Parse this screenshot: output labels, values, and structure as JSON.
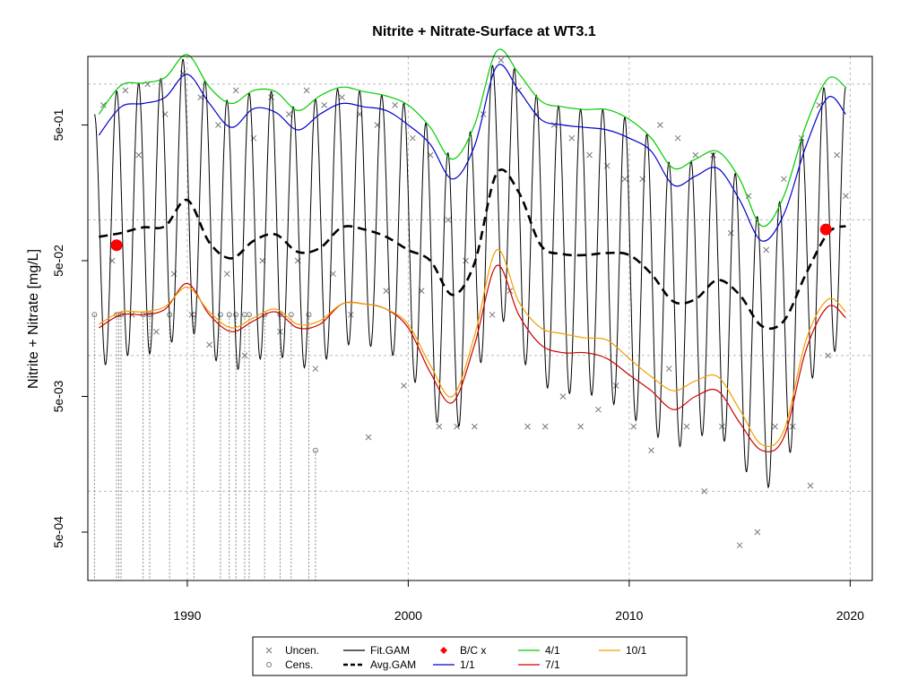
{
  "chart_data": {
    "type": "line",
    "title": "Nitrite + Nitrate-Surface at WT3.1",
    "xlabel": "",
    "ylabel": "Nitrite + Nitrate [mg/L]",
    "x_scale": "linear (year)",
    "y_scale": "log10",
    "xlim": [
      1985.5,
      2021.0
    ],
    "ylim": [
      0.00022,
      1.6
    ],
    "x_ticks": [
      1990,
      2000,
      2010,
      2020
    ],
    "x_tick_labels": [
      "1990",
      "2000",
      "2010",
      "2020"
    ],
    "y_ticks": [
      0.0005,
      0.005,
      0.05,
      0.5
    ],
    "y_tick_labels": [
      "5e-04",
      "5e-03",
      "5e-02",
      "5e-01"
    ],
    "y_gridlines": [
      0.001,
      0.01,
      0.1,
      1.0
    ],
    "grid": true,
    "legend_position": "bottom",
    "legend": [
      {
        "label": "Uncen.",
        "symbol": "x",
        "color": "#777777"
      },
      {
        "label": "Cens.",
        "symbol": "circle",
        "color": "#777777"
      },
      {
        "label": "Fit.GAM",
        "symbol": "line",
        "color": "#000000"
      },
      {
        "label": "Avg.GAM",
        "symbol": "dashed",
        "color": "#000000"
      },
      {
        "label": "B/C x",
        "symbol": "diamond",
        "color": "#ff0000"
      },
      {
        "label": "1/1",
        "symbol": "line",
        "color": "#0000cc"
      },
      {
        "label": "4/1",
        "symbol": "line",
        "color": "#00cc00"
      },
      {
        "label": "7/1",
        "symbol": "line",
        "color": "#cc0000"
      },
      {
        "label": "10/1",
        "symbol": "line",
        "color": "#f0a000"
      }
    ],
    "series": [
      {
        "name": "Avg.GAM",
        "color": "#000000",
        "style": "dashed",
        "x": [
          1986.0,
          1987.0,
          1988.0,
          1989.0,
          1990.0,
          1991.0,
          1992.0,
          1993.0,
          1994.0,
          1995.0,
          1996.0,
          1997.0,
          1998.0,
          1999.0,
          2000.0,
          2001.0,
          2002.0,
          2003.0,
          2004.0,
          2005.0,
          2006.0,
          2007.0,
          2008.0,
          2009.0,
          2010.0,
          2011.0,
          2012.0,
          2013.0,
          2014.0,
          2015.0,
          2016.0,
          2017.0,
          2018.0,
          2019.0,
          2019.8
        ],
        "y": [
          0.075,
          0.08,
          0.088,
          0.09,
          0.14,
          0.068,
          0.052,
          0.07,
          0.078,
          0.058,
          0.062,
          0.088,
          0.085,
          0.075,
          0.06,
          0.05,
          0.028,
          0.048,
          0.22,
          0.16,
          0.065,
          0.056,
          0.055,
          0.057,
          0.055,
          0.04,
          0.025,
          0.026,
          0.036,
          0.028,
          0.0165,
          0.018,
          0.04,
          0.08,
          0.09
        ]
      },
      {
        "name": "1/1",
        "color": "#0000cc",
        "x": [
          1986.0,
          1987.0,
          1988.0,
          1989.0,
          1990.0,
          1991.0,
          1992.0,
          1993.0,
          1994.0,
          1995.0,
          1996.0,
          1997.0,
          1998.0,
          1999.0,
          2000.0,
          2001.0,
          2002.0,
          2003.0,
          2004.0,
          2005.0,
          2006.0,
          2007.0,
          2008.0,
          2009.0,
          2010.0,
          2011.0,
          2012.0,
          2013.0,
          2014.0,
          2015.0,
          2016.0,
          2017.0,
          2018.0,
          2019.0,
          2019.8
        ],
        "y": [
          0.42,
          0.68,
          0.72,
          0.8,
          1.18,
          0.72,
          0.48,
          0.66,
          0.62,
          0.46,
          0.6,
          0.72,
          0.68,
          0.64,
          0.5,
          0.36,
          0.2,
          0.35,
          1.35,
          0.9,
          0.55,
          0.5,
          0.48,
          0.46,
          0.4,
          0.32,
          0.18,
          0.21,
          0.24,
          0.14,
          0.07,
          0.11,
          0.35,
          0.8,
          0.6
        ]
      },
      {
        "name": "4/1",
        "color": "#00cc00",
        "x": [
          1986.0,
          1987.0,
          1988.0,
          1989.0,
          1990.0,
          1991.0,
          1992.0,
          1993.0,
          1994.0,
          1995.0,
          1996.0,
          1997.0,
          1998.0,
          1999.0,
          2000.0,
          2001.0,
          2002.0,
          2003.0,
          2004.0,
          2005.0,
          2006.0,
          2007.0,
          2008.0,
          2009.0,
          2010.0,
          2011.0,
          2012.0,
          2013.0,
          2014.0,
          2015.0,
          2016.0,
          2017.0,
          2018.0,
          2019.0,
          2019.8
        ],
        "y": [
          0.6,
          0.98,
          1.02,
          1.12,
          1.65,
          0.95,
          0.72,
          0.9,
          0.88,
          0.64,
          0.82,
          0.95,
          0.88,
          0.82,
          0.7,
          0.48,
          0.28,
          0.5,
          1.75,
          1.2,
          0.75,
          0.68,
          0.65,
          0.65,
          0.55,
          0.4,
          0.24,
          0.28,
          0.32,
          0.2,
          0.09,
          0.15,
          0.5,
          1.1,
          0.95
        ]
      },
      {
        "name": "7/1",
        "color": "#cc0000",
        "x": [
          1986.0,
          1987.0,
          1988.0,
          1989.0,
          1990.0,
          1991.0,
          1992.0,
          1993.0,
          1994.0,
          1995.0,
          1996.0,
          1997.0,
          1998.0,
          1999.0,
          2000.0,
          2001.0,
          2002.0,
          2003.0,
          2004.0,
          2005.0,
          2006.0,
          2007.0,
          2008.0,
          2009.0,
          2010.0,
          2011.0,
          2012.0,
          2013.0,
          2014.0,
          2015.0,
          2016.0,
          2017.0,
          2018.0,
          2019.0,
          2019.8
        ],
        "y": [
          0.016,
          0.02,
          0.02,
          0.022,
          0.034,
          0.02,
          0.015,
          0.018,
          0.021,
          0.016,
          0.017,
          0.024,
          0.024,
          0.022,
          0.016,
          0.0075,
          0.0045,
          0.012,
          0.046,
          0.02,
          0.012,
          0.0105,
          0.0105,
          0.0095,
          0.0072,
          0.0055,
          0.004,
          0.005,
          0.0055,
          0.0032,
          0.002,
          0.0025,
          0.011,
          0.023,
          0.019
        ]
      },
      {
        "name": "10/1",
        "color": "#f0a000",
        "x": [
          1986.0,
          1987.0,
          1988.0,
          1989.0,
          1990.0,
          1991.0,
          1992.0,
          1993.0,
          1994.0,
          1995.0,
          1996.0,
          1997.0,
          1998.0,
          1999.0,
          2000.0,
          2001.0,
          2002.0,
          2003.0,
          2004.0,
          2005.0,
          2006.0,
          2007.0,
          2008.0,
          2009.0,
          2010.0,
          2011.0,
          2012.0,
          2013.0,
          2014.0,
          2015.0,
          2016.0,
          2017.0,
          2018.0,
          2019.0,
          2019.8
        ],
        "y": [
          0.017,
          0.021,
          0.021,
          0.023,
          0.032,
          0.021,
          0.016,
          0.019,
          0.022,
          0.017,
          0.018,
          0.024,
          0.024,
          0.022,
          0.017,
          0.0085,
          0.005,
          0.014,
          0.06,
          0.025,
          0.016,
          0.0145,
          0.0135,
          0.013,
          0.0095,
          0.007,
          0.0055,
          0.0065,
          0.007,
          0.004,
          0.0022,
          0.0028,
          0.013,
          0.026,
          0.021
        ]
      },
      {
        "name": "B/C x",
        "color": "#ff0000",
        "style": "points",
        "x": [
          1986.8,
          2018.9
        ],
        "y": [
          0.065,
          0.085
        ]
      }
    ],
    "uncensored_points": {
      "x": [
        1986.2,
        1986.6,
        1987.2,
        1987.5,
        1987.8,
        1988.2,
        1988.6,
        1989.0,
        1989.4,
        1989.8,
        1990.2,
        1990.6,
        1991.0,
        1991.4,
        1991.8,
        1992.2,
        1992.6,
        1993.0,
        1993.4,
        1993.8,
        1994.2,
        1994.6,
        1995.0,
        1995.4,
        1995.8,
        1996.2,
        1996.6,
        1997.0,
        1997.4,
        1997.8,
        1998.2,
        1998.6,
        1999.0,
        1999.4,
        1999.8,
        2000.2,
        2000.6,
        2001.0,
        2001.4,
        2001.8,
        2002.2,
        2002.6,
        2003.0,
        2003.4,
        2003.8,
        2004.2,
        2004.6,
        2005.0,
        2005.4,
        2005.8,
        2006.2,
        2006.6,
        2007.0,
        2007.4,
        2007.8,
        2008.2,
        2008.6,
        2009.0,
        2009.4,
        2009.8,
        2010.2,
        2010.6,
        2011.0,
        2011.4,
        2011.8,
        2012.2,
        2012.6,
        2013.0,
        2013.4,
        2013.8,
        2014.2,
        2014.6,
        2015.0,
        2015.4,
        2015.8,
        2016.2,
        2016.6,
        2017.0,
        2017.4,
        2017.8,
        2018.2,
        2018.6,
        2019.0,
        2019.4,
        2019.8
      ],
      "y": [
        0.7,
        0.05,
        0.9,
        0.02,
        0.3,
        1.0,
        0.015,
        0.6,
        0.04,
        1.2,
        0.02,
        0.8,
        0.012,
        0.5,
        0.04,
        0.9,
        0.01,
        0.4,
        0.05,
        0.8,
        0.015,
        0.6,
        0.05,
        0.9,
        0.008,
        0.7,
        0.04,
        0.8,
        0.02,
        0.6,
        0.0025,
        0.5,
        0.03,
        0.7,
        0.006,
        0.4,
        0.03,
        0.3,
        0.003,
        0.1,
        0.003,
        0.05,
        0.003,
        0.6,
        0.02,
        1.5,
        0.03,
        0.9,
        0.003,
        0.6,
        0.003,
        0.5,
        0.005,
        0.4,
        0.003,
        0.3,
        0.004,
        0.25,
        0.006,
        0.2,
        0.003,
        0.2,
        0.002,
        0.5,
        0.008,
        0.4,
        0.003,
        0.3,
        0.001,
        0.3,
        0.003,
        0.08,
        0.0004,
        0.15,
        0.0005,
        0.06,
        0.003,
        0.2,
        0.003,
        0.4,
        0.0011,
        0.7,
        0.01,
        0.3,
        0.15
      ]
    },
    "censored_points": {
      "x": [
        1985.8,
        1986.8,
        1986.9,
        1987.0,
        1988.0,
        1988.3,
        1989.2,
        1990.3,
        1991.5,
        1991.9,
        1992.2,
        1992.6,
        1992.8,
        1993.5,
        1994.2,
        1994.7,
        1995.5,
        1995.8
      ],
      "y": [
        0.02,
        0.02,
        0.02,
        0.02,
        0.02,
        0.02,
        0.02,
        0.02,
        0.02,
        0.02,
        0.02,
        0.02,
        0.02,
        0.02,
        0.02,
        0.02,
        0.02,
        0.002
      ]
    },
    "fit_gam": {
      "x_start": 1985.8,
      "x_end": 2019.8,
      "cycle_years": 1.0
    }
  }
}
